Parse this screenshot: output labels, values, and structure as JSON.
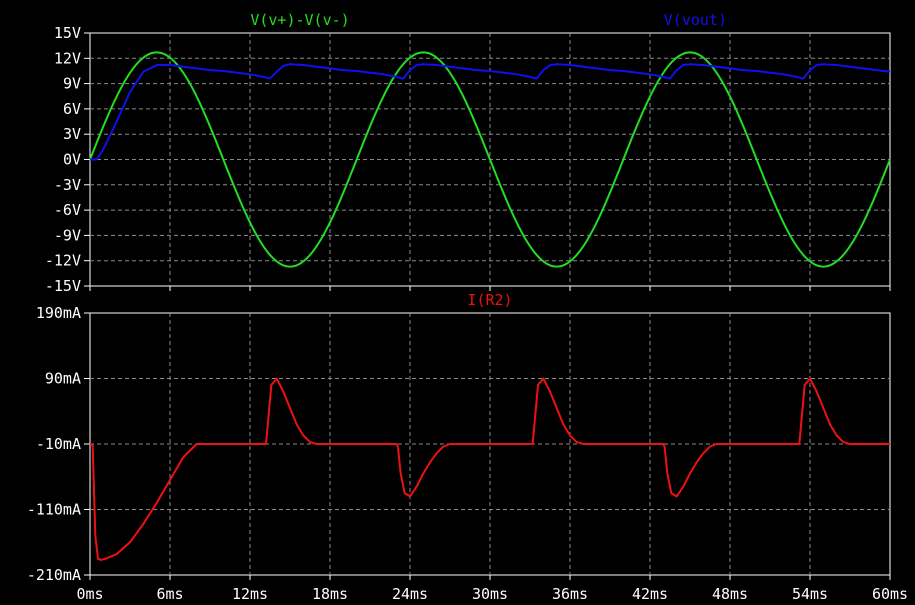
{
  "chart_data": [
    {
      "type": "line",
      "x_unit": "ms",
      "y_unit": "V",
      "xlim": [
        0,
        60
      ],
      "ylim": [
        -15,
        15
      ],
      "x_ticks": [
        "0ms",
        "6ms",
        "12ms",
        "18ms",
        "24ms",
        "30ms",
        "36ms",
        "42ms",
        "48ms",
        "54ms",
        "60ms"
      ],
      "y_ticks": [
        "15V",
        "12V",
        "9V",
        "6V",
        "3V",
        "0V",
        "-3V",
        "-6V",
        "-9V",
        "-12V",
        "-15V"
      ],
      "grid": true,
      "series": [
        {
          "name": "V(v+)-V(v-)",
          "color": "#22dd22",
          "model": "sine",
          "amplitude": 12.7,
          "period_ms": 20
        },
        {
          "name": "V(vout)",
          "color": "#1010ee",
          "x": [
            0,
            0.5,
            1,
            2,
            3,
            4,
            5,
            6,
            7,
            8,
            9,
            10,
            11,
            12,
            13,
            13.5,
            14,
            14.5,
            15,
            16,
            17,
            18,
            19,
            20,
            21,
            22,
            23,
            23.5,
            24,
            24.5,
            25,
            26,
            27,
            28,
            29,
            30,
            31,
            32,
            33,
            33.5,
            34,
            34.5,
            35,
            36,
            37,
            38,
            39,
            40,
            41,
            42,
            43,
            43.5,
            44,
            44.5,
            45,
            46,
            47,
            48,
            49,
            50,
            51,
            52,
            53,
            53.5,
            54,
            54.5,
            55,
            56,
            57,
            58,
            59,
            60
          ],
          "y": [
            0,
            0,
            1.2,
            4.5,
            8.0,
            10.4,
            11.2,
            11.2,
            11.0,
            10.8,
            10.6,
            10.5,
            10.3,
            10.1,
            9.8,
            9.6,
            10.4,
            11.1,
            11.3,
            11.2,
            11.0,
            10.8,
            10.6,
            10.5,
            10.3,
            10.1,
            9.8,
            9.6,
            10.6,
            11.2,
            11.3,
            11.2,
            11.0,
            10.8,
            10.6,
            10.5,
            10.3,
            10.1,
            9.8,
            9.6,
            10.6,
            11.2,
            11.3,
            11.2,
            11.0,
            10.8,
            10.6,
            10.5,
            10.3,
            10.1,
            9.8,
            9.6,
            10.6,
            11.2,
            11.3,
            11.2,
            11.0,
            10.8,
            10.6,
            10.5,
            10.3,
            10.1,
            9.8,
            9.6,
            10.6,
            11.2,
            11.3,
            11.2,
            11.0,
            10.8,
            10.6,
            10.4
          ]
        }
      ]
    },
    {
      "type": "line",
      "x_unit": "ms",
      "y_unit": "mA",
      "xlim": [
        0,
        60
      ],
      "ylim": [
        -210,
        190
      ],
      "x_ticks": [
        "0ms",
        "6ms",
        "12ms",
        "18ms",
        "24ms",
        "30ms",
        "36ms",
        "42ms",
        "48ms",
        "54ms",
        "60ms"
      ],
      "y_ticks": [
        "190mA",
        "90mA",
        "-10mA",
        "-110mA",
        "-210mA"
      ],
      "grid": true,
      "series": [
        {
          "name": "I(R2)",
          "color": "#ee1111",
          "x": [
            0,
            0.2,
            0.4,
            0.6,
            0.8,
            1.2,
            2,
            3,
            4,
            5,
            6,
            7,
            8,
            10,
            12,
            13,
            13.2,
            13.6,
            14,
            14.5,
            15,
            15.5,
            16,
            16.5,
            17,
            20,
            23,
            23.1,
            23.3,
            23.6,
            24,
            24.5,
            25,
            25.5,
            26,
            26.5,
            27,
            30,
            33,
            33.2,
            33.6,
            34,
            34.5,
            35,
            35.5,
            36,
            36.5,
            37,
            40,
            43,
            43.1,
            43.3,
            43.6,
            44,
            44.5,
            45,
            45.5,
            46,
            46.5,
            47,
            50,
            53,
            53.2,
            53.6,
            54,
            54.5,
            55,
            55.5,
            56,
            56.5,
            57,
            60
          ],
          "y": [
            -10,
            -12,
            -150,
            -185,
            -187,
            -185,
            -178,
            -160,
            -132,
            -100,
            -65,
            -30,
            -10,
            -10,
            -10,
            -10,
            -10,
            80,
            90,
            70,
            45,
            20,
            3,
            -7,
            -10,
            -10,
            -10,
            -15,
            -55,
            -85,
            -90,
            -75,
            -55,
            -38,
            -24,
            -14,
            -10,
            -10,
            -10,
            -10,
            80,
            90,
            70,
            45,
            20,
            3,
            -7,
            -10,
            -10,
            -10,
            -15,
            -55,
            -85,
            -90,
            -75,
            -55,
            -38,
            -24,
            -14,
            -10,
            -10,
            -10,
            -10,
            80,
            90,
            70,
            45,
            20,
            3,
            -7,
            -10,
            -10
          ]
        }
      ]
    }
  ]
}
